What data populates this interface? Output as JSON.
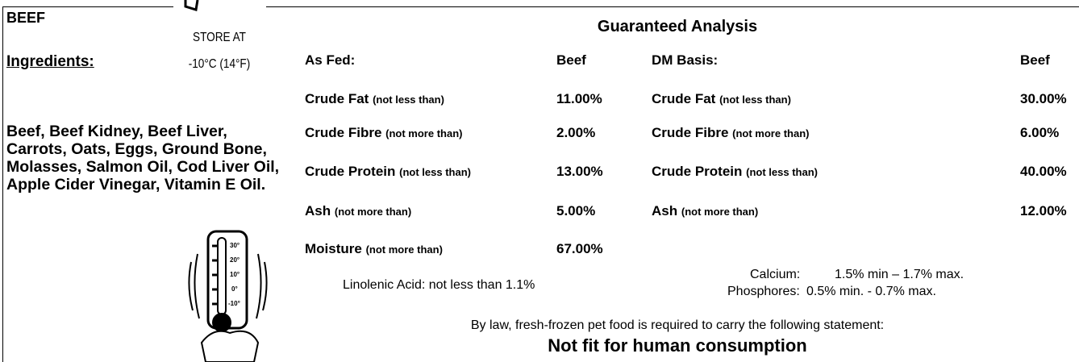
{
  "product": "BEEF",
  "storage": {
    "line1": "STORE AT",
    "line2": "-10°C (14°F)"
  },
  "ingredients": {
    "heading": "Ingredients:",
    "text": "Beef, Beef Kidney, Beef Liver, Carrots, Oats, Eggs, Ground Bone, Molasses, Salmon Oil, Cod Liver Oil, Apple Cider Vinegar, Vitamin E Oil."
  },
  "analysis": {
    "title": "Guaranteed Analysis",
    "as_fed": {
      "header": [
        "As Fed:",
        "Beef"
      ],
      "rows": [
        {
          "name": "Crude Fat",
          "qualifier": "(not less than)",
          "value": "11.00%"
        },
        {
          "name": "Crude Fibre",
          "qualifier": "(not more than)",
          "value": "2.00%"
        },
        {
          "name": "Crude Protein",
          "qualifier": "(not less than)",
          "value": "13.00%"
        },
        {
          "name": "Ash",
          "qualifier": "(not more than)",
          "value": "5.00%"
        },
        {
          "name": "Moisture",
          "qualifier": "(not more than)",
          "value": "67.00%"
        }
      ]
    },
    "dm_basis": {
      "header": [
        "DM Basis:",
        "Beef"
      ],
      "rows": [
        {
          "name": "Crude Fat",
          "qualifier": "(not less than)",
          "value": "30.00%"
        },
        {
          "name": "Crude Fibre",
          "qualifier": "(not more than)",
          "value": "6.00%"
        },
        {
          "name": "Crude Protein",
          "qualifier": "(not less than)",
          "value": "40.00%"
        },
        {
          "name": "Ash",
          "qualifier": "(not more than)",
          "value": "12.00%"
        }
      ]
    }
  },
  "linolenic": "Linolenic Acid: not less than 1.1%",
  "minerals": [
    {
      "label": "Calcium:",
      "value": "1.5% min – 1.7% max."
    },
    {
      "label": "Phosphores:",
      "value": "0.5% min. - 0.7% max."
    }
  ],
  "statement": "By law, fresh-frozen pet food is required to carry the following statement:",
  "warning": "Not fit for human consumption"
}
